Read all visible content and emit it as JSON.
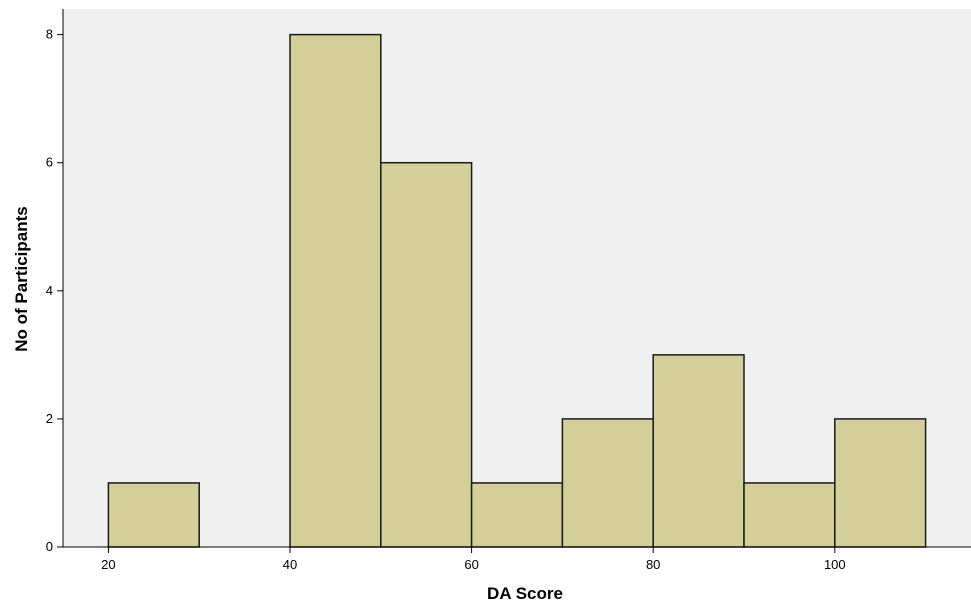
{
  "chart_data": {
    "type": "bar",
    "title": "",
    "xlabel": "DA Score",
    "ylabel": "No of Participants",
    "bins": [
      {
        "x0": 20,
        "x1": 30,
        "count": 1
      },
      {
        "x0": 30,
        "x1": 40,
        "count": 0
      },
      {
        "x0": 40,
        "x1": 50,
        "count": 8
      },
      {
        "x0": 50,
        "x1": 60,
        "count": 6
      },
      {
        "x0": 60,
        "x1": 70,
        "count": 1
      },
      {
        "x0": 70,
        "x1": 80,
        "count": 2
      },
      {
        "x0": 80,
        "x1": 90,
        "count": 3
      },
      {
        "x0": 90,
        "x1": 100,
        "count": 1
      },
      {
        "x0": 100,
        "x1": 110,
        "count": 2
      }
    ],
    "xlim": [
      15,
      115
    ],
    "ylim": [
      0,
      8.4
    ],
    "xticks": [
      "20",
      "40",
      "60",
      "80",
      "100"
    ],
    "yticks": [
      "0",
      "2",
      "4",
      "6",
      "8"
    ],
    "grid": false,
    "legend": "none",
    "colors": {
      "bar_fill": "#d4cf98",
      "bar_stroke": "#1a1a1a",
      "plot_background": "#f0f0f0",
      "axis": "#000000"
    }
  }
}
